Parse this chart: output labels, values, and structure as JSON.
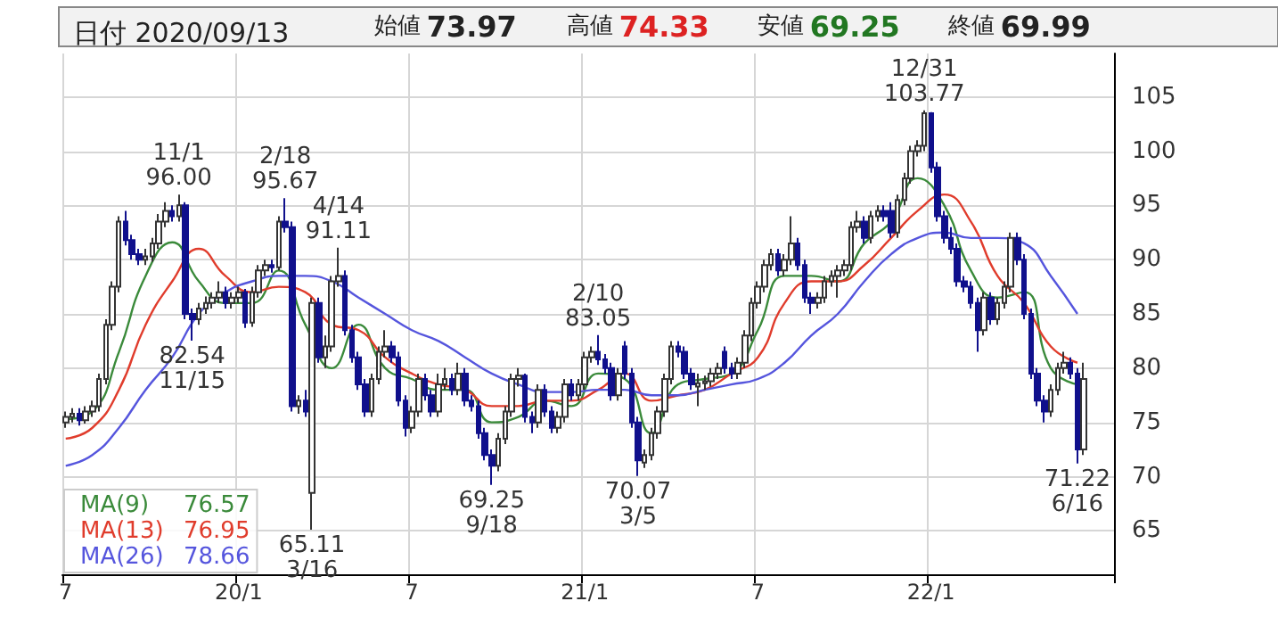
{
  "chart_data": {
    "type": "candlestick",
    "title": "日付 2020/09/13",
    "categories": [
      "7",
      null,
      null,
      null,
      null,
      null,
      null,
      null,
      null,
      null,
      null,
      null,
      null,
      null,
      null,
      null,
      null,
      null,
      null,
      null,
      null,
      null,
      null,
      null,
      null,
      null,
      "20/1",
      null,
      null,
      null,
      null,
      null,
      null,
      null,
      null,
      null,
      null,
      null,
      null,
      null,
      null,
      null,
      null,
      null,
      null,
      null,
      null,
      null,
      null,
      null,
      null,
      null,
      "7",
      null,
      null,
      null,
      null,
      null,
      null,
      null,
      null,
      null,
      null,
      null,
      null,
      null,
      null,
      null,
      null,
      null,
      null,
      null,
      null,
      null,
      null,
      null,
      null,
      null,
      "21/1",
      null,
      null,
      null,
      null,
      null,
      null,
      null,
      null,
      null,
      null,
      null,
      null,
      null,
      null,
      null,
      null,
      null,
      null,
      null,
      null,
      null,
      null,
      null,
      null,
      null,
      "7",
      null,
      null,
      null,
      null,
      null,
      null,
      null,
      null,
      null,
      null,
      null,
      null,
      null,
      null,
      null,
      null,
      null,
      null,
      null,
      null,
      null,
      null,
      null,
      null,
      null,
      "22/1",
      null,
      null,
      null,
      null,
      null,
      null,
      null,
      null,
      null,
      null,
      null,
      null,
      null,
      null,
      null,
      null,
      null,
      null,
      null,
      null,
      null,
      null,
      null
    ],
    "ohlc": [
      [
        75,
        76,
        74.5,
        75.5
      ],
      [
        75.5,
        76.3,
        75,
        75.8
      ],
      [
        75.8,
        76.3,
        74.7,
        75.2
      ],
      [
        75.2,
        76.5,
        74.9,
        76
      ],
      [
        76,
        77,
        75.5,
        76.5
      ],
      [
        76.5,
        79.5,
        76,
        79
      ],
      [
        79,
        84.5,
        78.5,
        84
      ],
      [
        84,
        88,
        83.5,
        87.5
      ],
      [
        87.5,
        94,
        87,
        93.5
      ],
      [
        93.5,
        94.5,
        91.3,
        91.8
      ],
      [
        91.8,
        92.3,
        90,
        90.5
      ],
      [
        90.5,
        91,
        89.5,
        90
      ],
      [
        90,
        91,
        89.5,
        90.3
      ],
      [
        90.3,
        92,
        89.8,
        91.5
      ],
      [
        91.5,
        94.2,
        91,
        93.5
      ],
      [
        93.5,
        95.3,
        93,
        94.5
      ],
      [
        94.5,
        95,
        93.5,
        94
      ],
      [
        94,
        96.0,
        93.5,
        95
      ],
      [
        95,
        95.3,
        84.5,
        85
      ],
      [
        85,
        85.5,
        82.54,
        84.5
      ],
      [
        84.5,
        86,
        84,
        85.5
      ],
      [
        85.5,
        86.6,
        85,
        86
      ],
      [
        86,
        87,
        85.5,
        86.5
      ],
      [
        86.5,
        88,
        86,
        87
      ],
      [
        87,
        87.5,
        85.5,
        86
      ],
      [
        86,
        87,
        85.5,
        86.5
      ],
      [
        86.5,
        87.5,
        86,
        87
      ],
      [
        87,
        87.3,
        83.7,
        84.2
      ],
      [
        84.2,
        87.5,
        83.8,
        87
      ],
      [
        87,
        89.5,
        86.5,
        89
      ],
      [
        89,
        90,
        88.5,
        89.5
      ],
      [
        89.5,
        90,
        88.8,
        89.3
      ],
      [
        89.3,
        94,
        89,
        93.5
      ],
      [
        93.5,
        95.67,
        92.5,
        93
      ],
      [
        93,
        93.5,
        76,
        76.5
      ],
      [
        76.5,
        77.5,
        75.8,
        77
      ],
      [
        77,
        78,
        75.5,
        76
      ],
      [
        68.5,
        86.5,
        65.11,
        86
      ],
      [
        86,
        86.5,
        80.5,
        81
      ],
      [
        81,
        83,
        80,
        82
      ],
      [
        82,
        88.5,
        81.5,
        88
      ],
      [
        88,
        91.11,
        87.5,
        88.5
      ],
      [
        88.5,
        89,
        83,
        83.5
      ],
      [
        83.5,
        84,
        80.5,
        81
      ],
      [
        81,
        81.5,
        78,
        78.5
      ],
      [
        78.5,
        79,
        75.5,
        76
      ],
      [
        76,
        79.5,
        75.5,
        79
      ],
      [
        79,
        82,
        78.5,
        81.5
      ],
      [
        81.5,
        83.5,
        81,
        82
      ],
      [
        82,
        82.5,
        80.5,
        81
      ],
      [
        81,
        81.5,
        76.5,
        77
      ],
      [
        77,
        77.5,
        73.7,
        74.5
      ],
      [
        74.5,
        76.5,
        74,
        76
      ],
      [
        76,
        79.5,
        75.5,
        79
      ],
      [
        79,
        79.5,
        77,
        77.5
      ],
      [
        77.5,
        78,
        75.5,
        76
      ],
      [
        76,
        79.5,
        75.5,
        78.5
      ],
      [
        78.5,
        80,
        78,
        79
      ],
      [
        79,
        79.5,
        77.5,
        78
      ],
      [
        78,
        80.5,
        77.5,
        79.5
      ],
      [
        79.5,
        80,
        76.5,
        77
      ],
      [
        77,
        77.5,
        76,
        76.5
      ],
      [
        76.5,
        77,
        73.5,
        74
      ],
      [
        74,
        74.5,
        71.5,
        72
      ],
      [
        72,
        72.5,
        69.25,
        71
      ],
      [
        71,
        74,
        70.5,
        73.5
      ],
      [
        73.5,
        76.5,
        73,
        76
      ],
      [
        76,
        79.5,
        75.5,
        79
      ],
      [
        79,
        80,
        78.3,
        79.3
      ],
      [
        79.3,
        79.5,
        75,
        75.5
      ],
      [
        75.5,
        76,
        74,
        75
      ],
      [
        75,
        78.5,
        74.5,
        78
      ],
      [
        78,
        78.5,
        75.5,
        76
      ],
      [
        76,
        76.5,
        74,
        74.5
      ],
      [
        74.5,
        76,
        74,
        75.5
      ],
      [
        75.5,
        79,
        75,
        78.5
      ],
      [
        78.5,
        79,
        77,
        77.5
      ],
      [
        77.5,
        79,
        77,
        78.5
      ],
      [
        78.5,
        81.5,
        78,
        81
      ],
      [
        81,
        82,
        80.5,
        81.5
      ],
      [
        81.5,
        83.05,
        80.3,
        80.8
      ],
      [
        80.8,
        81.3,
        79.5,
        80
      ],
      [
        80,
        80.5,
        77,
        77.5
      ],
      [
        77.5,
        80,
        77,
        79.5
      ],
      [
        82,
        82.5,
        79,
        79.5
      ],
      [
        79.5,
        80,
        74.5,
        75
      ],
      [
        75,
        75.5,
        70.07,
        71.5
      ],
      [
        71.3,
        72.5,
        70.8,
        72
      ],
      [
        72,
        74.5,
        71.5,
        74
      ],
      [
        74,
        76.5,
        73.5,
        76
      ],
      [
        76,
        79.5,
        75.5,
        79
      ],
      [
        79,
        82.5,
        78.5,
        82
      ],
      [
        82,
        82.5,
        81,
        81.5
      ],
      [
        81.5,
        82,
        79,
        79.5
      ],
      [
        79.5,
        80,
        78,
        78.5
      ],
      [
        78.3,
        79.5,
        76.5,
        78.6
      ],
      [
        78.6,
        79.3,
        78,
        78.8
      ],
      [
        78.8,
        80,
        78.3,
        79.5
      ],
      [
        79.5,
        80.5,
        79,
        80
      ],
      [
        81.5,
        82,
        79.5,
        80
      ],
      [
        80,
        80.5,
        79,
        79.5
      ],
      [
        79.5,
        81,
        79,
        80.5
      ],
      [
        80.5,
        83.5,
        80,
        83
      ],
      [
        83,
        86.5,
        82.5,
        86
      ],
      [
        86,
        88,
        85.5,
        87.5
      ],
      [
        87.5,
        90,
        87,
        89.5
      ],
      [
        89.5,
        91,
        89,
        90.5
      ],
      [
        90.5,
        91,
        88.5,
        89
      ],
      [
        89,
        90.5,
        88.5,
        90
      ],
      [
        90,
        94,
        89.5,
        91.5
      ],
      [
        91.5,
        92,
        89,
        89.5
      ],
      [
        89.5,
        90,
        86,
        86.5
      ],
      [
        86.5,
        87,
        85,
        86
      ],
      [
        86,
        87,
        85.5,
        86.5
      ],
      [
        86.5,
        88.5,
        86,
        88
      ],
      [
        88,
        89,
        87.5,
        88.5
      ],
      [
        88.5,
        89.5,
        86.5,
        89
      ],
      [
        89,
        90,
        88.5,
        89.5
      ],
      [
        89.5,
        93.5,
        89,
        93
      ],
      [
        93,
        94.5,
        92.5,
        93.5
      ],
      [
        93.5,
        94,
        91.5,
        92
      ],
      [
        92,
        94.5,
        91.5,
        94
      ],
      [
        94,
        95,
        93.5,
        94.5
      ],
      [
        94.5,
        95,
        93.5,
        94
      ],
      [
        94.5,
        95.3,
        92,
        92.5
      ],
      [
        92.5,
        96,
        92,
        95.5
      ],
      [
        95.5,
        98,
        95,
        97.5
      ],
      [
        97.5,
        100.5,
        97,
        100
      ],
      [
        100,
        101,
        99.5,
        100.5
      ],
      [
        100.5,
        103.77,
        100,
        103.5
      ],
      [
        103.5,
        103.6,
        98,
        98.5
      ],
      [
        98.5,
        99,
        93.5,
        94
      ],
      [
        94,
        94.5,
        91.5,
        92
      ],
      [
        92,
        93,
        90.5,
        91
      ],
      [
        91,
        91.5,
        87.5,
        88
      ],
      [
        88,
        88.5,
        87,
        87.5
      ],
      [
        87.5,
        88,
        85.5,
        86
      ],
      [
        86,
        86.5,
        81.5,
        83.5
      ],
      [
        83.5,
        87,
        83,
        86.5
      ],
      [
        86.5,
        87,
        84,
        84.5
      ],
      [
        84.5,
        86.5,
        84,
        86
      ],
      [
        86,
        88,
        85.5,
        87.5
      ],
      [
        87.5,
        92.5,
        87,
        92
      ],
      [
        92,
        92.5,
        89.5,
        90
      ],
      [
        90,
        90.5,
        84.5,
        85
      ],
      [
        85,
        85.5,
        79,
        79.5
      ],
      [
        79.5,
        80,
        76.5,
        77
      ],
      [
        77,
        77.5,
        75,
        76
      ],
      [
        76,
        78.5,
        75.5,
        78
      ],
      [
        78,
        80.5,
        77.5,
        80
      ],
      [
        80,
        81.5,
        79.5,
        80.5
      ],
      [
        80.5,
        81,
        79,
        79.5
      ],
      [
        79.5,
        80,
        71.22,
        72.5
      ],
      [
        72.5,
        80.5,
        72,
        79
      ]
    ],
    "series": [
      {
        "type": "line",
        "name": "MA(9)",
        "color": "#3a8a3a",
        "values": [
          75.3,
          null,
          null,
          null,
          76,
          null,
          null,
          null,
          81.5,
          null,
          null,
          null,
          88.5,
          null,
          null,
          null,
          91.6,
          null,
          null,
          null,
          88,
          null,
          null,
          null,
          86,
          null,
          null,
          null,
          86,
          null,
          null,
          null,
          89,
          null,
          null,
          null,
          84,
          null,
          null,
          null,
          80,
          null,
          null,
          null,
          84,
          null,
          null,
          null,
          80,
          null,
          null,
          null,
          79,
          null,
          null,
          null,
          78,
          null,
          null,
          null,
          78,
          null,
          null,
          null,
          75,
          null,
          null,
          null,
          75.5,
          null,
          null,
          null,
          77,
          null,
          null,
          null,
          76.5,
          null,
          null,
          null,
          79.5,
          null,
          null,
          null,
          79,
          null,
          null,
          null,
          74,
          null,
          null,
          null,
          78.5,
          null,
          null,
          null,
          79,
          null,
          null,
          null,
          79.5,
          null,
          null,
          null,
          83.5,
          null,
          null,
          null,
          88.5,
          null,
          null,
          null,
          88.5,
          null,
          null,
          null,
          88,
          null,
          null,
          null,
          91.5,
          null,
          null,
          null,
          93.5,
          null,
          null,
          null,
          97.5,
          null,
          null,
          null,
          95,
          null,
          null,
          null,
          89,
          null,
          null,
          null,
          86.5,
          null,
          null,
          null,
          87,
          null,
          null,
          null,
          80,
          null,
          null,
          null,
          78.5,
          null
        ]
      },
      {
        "type": "line",
        "name": "MA(13)",
        "color": "#e03c2c",
        "values": [
          73.5,
          null,
          null,
          null,
          74.5,
          null,
          null,
          null,
          78,
          null,
          null,
          null,
          84,
          null,
          null,
          null,
          88,
          null,
          null,
          null,
          91,
          null,
          null,
          null,
          88.5,
          null,
          null,
          null,
          87,
          null,
          null,
          null,
          87.5,
          null,
          null,
          null,
          87,
          null,
          null,
          null,
          84,
          null,
          null,
          null,
          83.5,
          null,
          null,
          null,
          81,
          null,
          null,
          null,
          79.5,
          null,
          null,
          null,
          78.5,
          null,
          null,
          null,
          78,
          null,
          null,
          null,
          76.5,
          null,
          null,
          null,
          76.5,
          null,
          null,
          null,
          77,
          null,
          null,
          null,
          77,
          null,
          null,
          null,
          78,
          null,
          null,
          null,
          79.5,
          null,
          null,
          null,
          77,
          null,
          null,
          null,
          77.5,
          null,
          null,
          null,
          78,
          null,
          null,
          null,
          79.5,
          null,
          null,
          null,
          81,
          null,
          null,
          null,
          86,
          null,
          null,
          null,
          88,
          null,
          null,
          null,
          88,
          null,
          null,
          null,
          89.5,
          null,
          null,
          null,
          92,
          null,
          null,
          null,
          94.5,
          null,
          null,
          null,
          96,
          null,
          null,
          null,
          93.5,
          null,
          null,
          null,
          88.5,
          null,
          null,
          null,
          86,
          null,
          null,
          null,
          82,
          null,
          null,
          null,
          80.5,
          null
        ]
      },
      {
        "type": "line",
        "name": "MA(26)",
        "color": "#5555dd",
        "values": [
          71,
          null,
          null,
          null,
          72,
          null,
          null,
          null,
          74.5,
          null,
          null,
          null,
          78,
          null,
          null,
          null,
          81,
          null,
          null,
          null,
          85,
          null,
          null,
          null,
          87,
          null,
          null,
          null,
          88,
          null,
          null,
          null,
          88.5,
          null,
          null,
          null,
          88.5,
          null,
          null,
          null,
          88,
          null,
          null,
          null,
          86.5,
          null,
          null,
          null,
          85,
          null,
          null,
          null,
          83.5,
          null,
          null,
          null,
          82.5,
          null,
          null,
          null,
          81,
          null,
          null,
          null,
          79.5,
          null,
          null,
          null,
          78.5,
          null,
          null,
          null,
          77.8,
          null,
          null,
          null,
          77.8,
          null,
          null,
          null,
          78,
          null,
          null,
          null,
          78,
          null,
          null,
          null,
          77.5,
          null,
          null,
          null,
          77.5,
          null,
          null,
          null,
          78,
          null,
          null,
          null,
          78.5,
          null,
          null,
          null,
          79,
          null,
          null,
          null,
          80.5,
          null,
          null,
          null,
          83,
          null,
          null,
          null,
          85,
          null,
          null,
          null,
          88,
          null,
          null,
          null,
          90.5,
          null,
          null,
          null,
          92,
          null,
          null,
          null,
          92.5,
          null,
          null,
          null,
          92,
          null,
          null,
          null,
          92,
          null,
          null,
          null,
          91.5,
          null,
          null,
          null,
          88.5,
          null,
          null,
          null,
          85,
          null
        ]
      }
    ],
    "ylim": [
      61,
      109
    ],
    "yticks": [
      65,
      70,
      75,
      80,
      85,
      90,
      95,
      100,
      105
    ],
    "grid": true,
    "legend": "bottom left",
    "annotations": [
      "始値 73.97",
      "高値 74.33",
      "安値 69.25",
      "終値 69.99",
      "76.57",
      "76.95",
      "78.66",
      {
        "text": "11/1\n96.00",
        "y": 96.0
      },
      {
        "text": "82.54\n11/15",
        "y": 82.54
      },
      {
        "text": "2/18\n95.67",
        "y": 95.67
      },
      {
        "text": "65.11\n3/16",
        "y": 65.11
      },
      {
        "text": "4/14\n91.11",
        "y": 91.11
      },
      {
        "text": "69.25\n9/18",
        "y": 69.25
      },
      {
        "text": "2/10\n83.05",
        "y": 83.05
      },
      {
        "text": "70.07\n3/5",
        "y": 70.07
      },
      {
        "text": "12/31\n103.77",
        "y": 103.77
      },
      {
        "text": "71.22\n6/16",
        "y": 71.22
      }
    ]
  }
}
